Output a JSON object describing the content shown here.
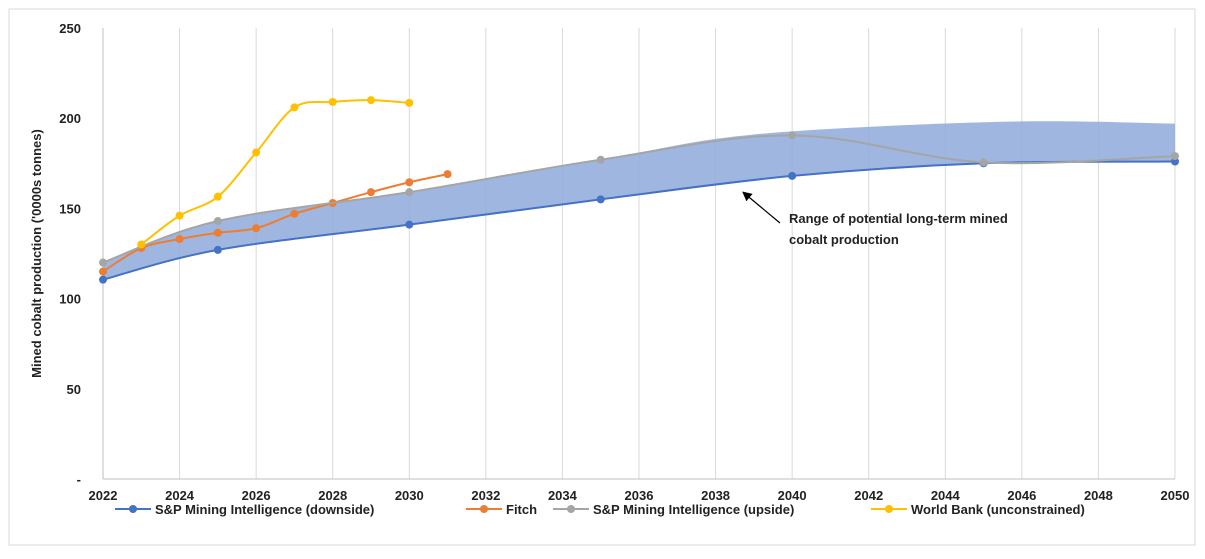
{
  "chart_data": {
    "type": "line",
    "ylabel": "Mined cobalt production ('0000s tonnes)",
    "xlabel": "",
    "xlim": [
      2022,
      2050
    ],
    "ylim": [
      0,
      250
    ],
    "x_ticks": [
      "2022",
      "2024",
      "2026",
      "2028",
      "2030",
      "2032",
      "2034",
      "2036",
      "2038",
      "2040",
      "2042",
      "2044",
      "2046",
      "2048",
      "2050"
    ],
    "y_ticks": [
      "-",
      "50",
      "100",
      "150",
      "200",
      "250"
    ],
    "grid": "vertical",
    "legend_position": "bottom",
    "annotation": [
      "Range of potential long-term mined",
      "cobalt production"
    ],
    "band": {
      "upper": [
        [
          2022,
          120
        ],
        [
          2025,
          143
        ],
        [
          2030,
          159
        ],
        [
          2035,
          177
        ],
        [
          2039,
          191
        ],
        [
          2045.5,
          198
        ],
        [
          2050,
          197
        ]
      ],
      "lower": [
        [
          2050,
          176
        ],
        [
          2045,
          175
        ],
        [
          2040,
          168
        ],
        [
          2035,
          155
        ],
        [
          2030,
          141
        ],
        [
          2025,
          127
        ],
        [
          2022,
          110
        ]
      ],
      "color": "#8EA9DB"
    },
    "series": [
      {
        "name": "S&P Mining Intelligence (downside)",
        "color": "#4472C4",
        "points": [
          [
            2022,
            110.5
          ],
          [
            2025,
            127
          ],
          [
            2030,
            141
          ],
          [
            2035,
            155
          ],
          [
            2040,
            168
          ],
          [
            2045,
            175
          ],
          [
            2050,
            176
          ]
        ]
      },
      {
        "name": "Fitch",
        "color": "#ED7D31",
        "points": [
          [
            2022,
            115
          ],
          [
            2023,
            128
          ],
          [
            2024,
            133
          ],
          [
            2025,
            136.5
          ],
          [
            2026,
            139
          ],
          [
            2027,
            147
          ],
          [
            2028,
            153
          ],
          [
            2029,
            159
          ],
          [
            2030,
            164.5
          ],
          [
            2031,
            169
          ]
        ]
      },
      {
        "name": "S&P Mining Intelligence (upside)",
        "color": "#A5A5A5",
        "points": [
          [
            2022,
            120
          ],
          [
            2025,
            143
          ],
          [
            2030,
            159
          ],
          [
            2035,
            177
          ],
          [
            2040,
            190.5
          ],
          [
            2045,
            175.5
          ],
          [
            2050,
            179
          ]
        ]
      },
      {
        "name": "World Bank (unconstrained)",
        "color": "#FFC000",
        "points": [
          [
            2023,
            130
          ],
          [
            2024,
            146
          ],
          [
            2025,
            156.5
          ],
          [
            2026,
            181
          ],
          [
            2027,
            206
          ],
          [
            2028,
            209
          ],
          [
            2029,
            210
          ],
          [
            2030,
            208.5
          ]
        ]
      }
    ]
  }
}
